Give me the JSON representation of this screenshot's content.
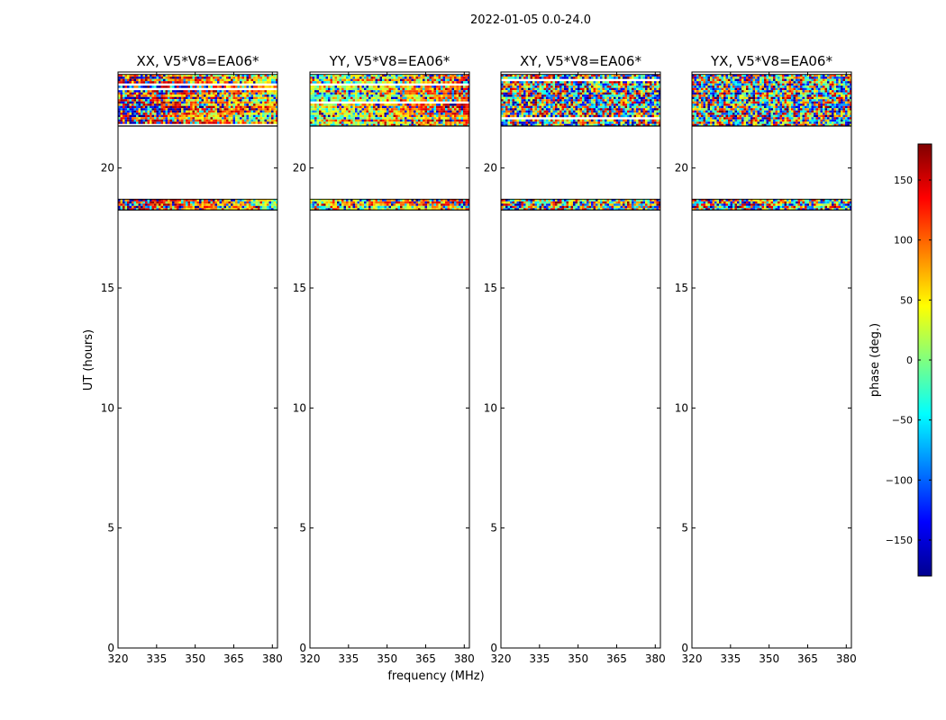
{
  "suptitle": "2022-01-05 0.0-24.0",
  "chart_data": {
    "type": "heatmap",
    "ylabel": "UT (hours)",
    "xlabel": "frequency (MHz)",
    "xlim": [
      320,
      382
    ],
    "ylim": [
      0,
      24
    ],
    "xticks": [
      320,
      335,
      350,
      365,
      380
    ],
    "yticks": [
      0,
      5,
      10,
      15,
      20
    ],
    "panels": [
      {
        "title": "XX, V5*V8=EA06*",
        "pol": "XX"
      },
      {
        "title": "YY, V5*V8=EA06*",
        "pol": "YY"
      },
      {
        "title": "XY, V5*V8=EA06*",
        "pol": "XY"
      },
      {
        "title": "YX, V5*V8=EA06*",
        "pol": "YX"
      }
    ],
    "data_bands_hours": [
      [
        18.25,
        18.7
      ],
      [
        21.75,
        23.9
      ]
    ],
    "colorbar": {
      "label": "phase (deg.)",
      "range": [
        -180,
        180
      ],
      "ticks": [
        -150,
        -100,
        -50,
        0,
        50,
        100,
        150
      ],
      "colormap": "jet"
    }
  }
}
